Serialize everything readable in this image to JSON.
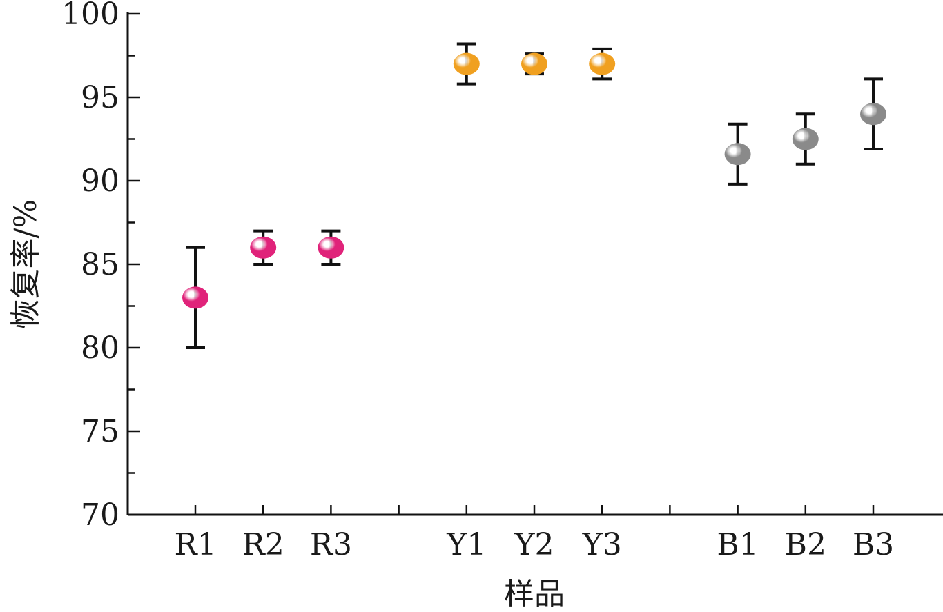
{
  "chart_data": {
    "type": "scatter",
    "xlabel": "样品",
    "ylabel": "恢复率/%",
    "ylim": [
      70,
      100
    ],
    "yticks": [
      70,
      75,
      80,
      85,
      90,
      95,
      100
    ],
    "grid": false,
    "legend": "none",
    "groups": [
      {
        "color": "#e0237a",
        "points": [
          {
            "label": "R1",
            "value": 83.0,
            "err_low": 80.0,
            "err_high": 86.0
          },
          {
            "label": "R2",
            "value": 86.0,
            "err_low": 85.0,
            "err_high": 87.0
          },
          {
            "label": "R3",
            "value": 86.0,
            "err_low": 85.0,
            "err_high": 87.0
          }
        ]
      },
      {
        "color": "#f0a020",
        "points": [
          {
            "label": "Y1",
            "value": 97.0,
            "err_low": 95.8,
            "err_high": 98.2
          },
          {
            "label": "Y2",
            "value": 97.0,
            "err_low": 96.4,
            "err_high": 97.6
          },
          {
            "label": "Y3",
            "value": 97.0,
            "err_low": 96.1,
            "err_high": 97.9
          }
        ]
      },
      {
        "color": "#8a8a8a",
        "points": [
          {
            "label": "B1",
            "value": 91.6,
            "err_low": 89.8,
            "err_high": 93.4
          },
          {
            "label": "B2",
            "value": 92.5,
            "err_low": 91.0,
            "err_high": 94.0
          },
          {
            "label": "B3",
            "value": 94.0,
            "err_low": 91.9,
            "err_high": 96.1
          }
        ]
      }
    ]
  }
}
